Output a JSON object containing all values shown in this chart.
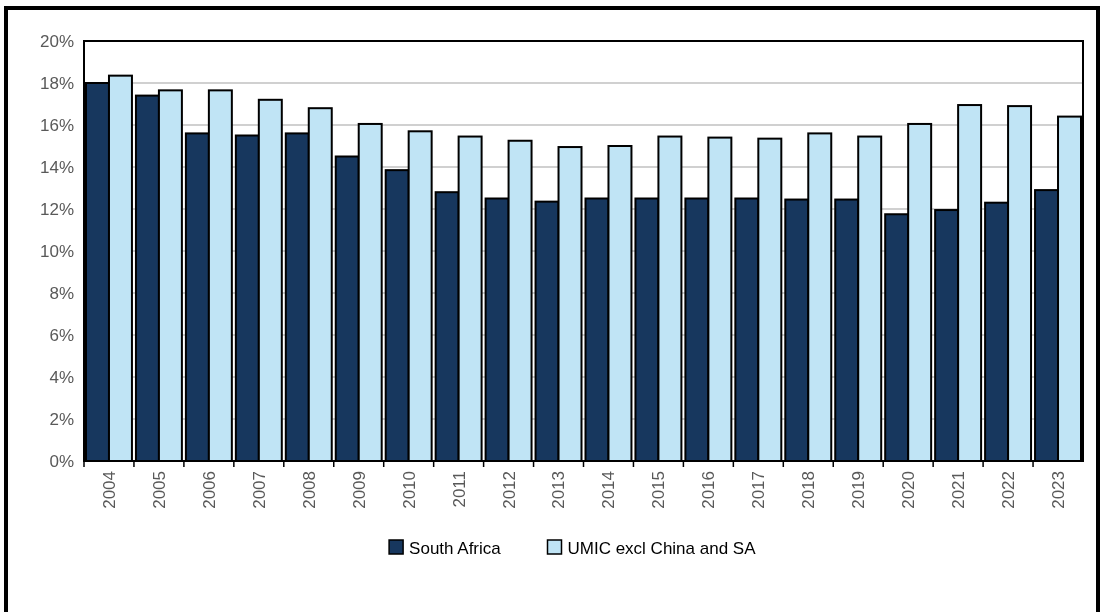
{
  "chart_data": {
    "type": "bar",
    "categories": [
      "2004",
      "2005",
      "2006",
      "2007",
      "2008",
      "2009",
      "2010",
      "2011",
      "2012",
      "2013",
      "2014",
      "2015",
      "2016",
      "2017",
      "2018",
      "2019",
      "2020",
      "2021",
      "2022",
      "2023"
    ],
    "series": [
      {
        "name": "South Africa",
        "color": "#17375e",
        "values": [
          18.0,
          17.4,
          15.6,
          15.5,
          15.6,
          14.5,
          13.85,
          12.8,
          12.5,
          12.35,
          12.5,
          12.5,
          12.5,
          12.5,
          12.45,
          12.45,
          11.75,
          11.95,
          12.3,
          12.9
        ]
      },
      {
        "name": "UMIC excl China and SA",
        "color": "#c0e4f5",
        "values": [
          18.35,
          17.65,
          17.65,
          17.2,
          16.8,
          16.05,
          15.7,
          15.45,
          15.25,
          14.95,
          15.0,
          15.45,
          15.4,
          15.35,
          15.6,
          15.45,
          16.05,
          16.95,
          16.9,
          16.4
        ]
      }
    ],
    "ylim": [
      0,
      20
    ],
    "yticks": [
      {
        "value": 0,
        "label": "0%"
      },
      {
        "value": 2,
        "label": "2%"
      },
      {
        "value": 4,
        "label": "4%"
      },
      {
        "value": 6,
        "label": "6%"
      },
      {
        "value": 8,
        "label": "8%"
      },
      {
        "value": 10,
        "label": "10%"
      },
      {
        "value": 12,
        "label": "12%"
      },
      {
        "value": 14,
        "label": "14%"
      },
      {
        "value": 16,
        "label": "16%"
      },
      {
        "value": 18,
        "label": "18%"
      },
      {
        "value": 20,
        "label": "20%"
      }
    ],
    "grid": "y",
    "legend": "bottom"
  }
}
